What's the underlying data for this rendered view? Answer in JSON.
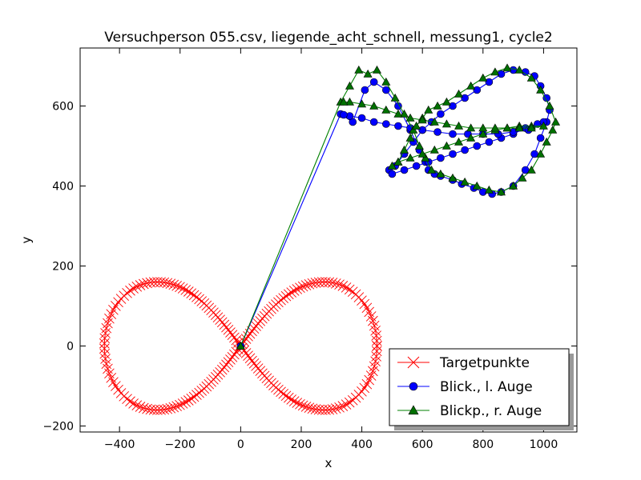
{
  "chart_data": {
    "type": "line",
    "title": "Versuchperson 055.csv, liegende_acht_schnell, messung1, cycle2",
    "xlabel": "x",
    "ylabel": "y",
    "xlim": [
      -530,
      1110
    ],
    "ylim": [
      -215,
      745
    ],
    "xticks": [
      -400,
      -200,
      0,
      200,
      400,
      600,
      800,
      1000
    ],
    "yticks": [
      -200,
      0,
      200,
      400,
      600
    ],
    "xtick_labels": [
      "−400",
      "−200",
      "0",
      "200",
      "400",
      "600",
      "800",
      "1000"
    ],
    "ytick_labels": [
      "−200",
      "0",
      "200",
      "400",
      "600"
    ],
    "grid": false,
    "legend_position": "lower right",
    "series": [
      {
        "name": "Targetpunkte",
        "color": "#ff0000",
        "marker": "x",
        "shape": "lemniscate",
        "x_extent": [
          -450,
          450
        ],
        "y_extent": [
          -160,
          160
        ],
        "point_count": 220
      },
      {
        "name": "Blick., l. Auge",
        "color": "#0000ff",
        "marker_fill": "#0000ff",
        "marker": "circle",
        "points": [
          [
            0,
            0
          ],
          [
            330,
            580
          ],
          [
            370,
            560
          ],
          [
            410,
            640
          ],
          [
            440,
            660
          ],
          [
            480,
            640
          ],
          [
            520,
            600
          ],
          [
            560,
            540
          ],
          [
            590,
            490
          ],
          [
            610,
            460
          ],
          [
            620,
            440
          ],
          [
            640,
            430
          ],
          [
            660,
            425
          ],
          [
            700,
            415
          ],
          [
            730,
            405
          ],
          [
            770,
            395
          ],
          [
            800,
            385
          ],
          [
            830,
            380
          ],
          [
            860,
            385
          ],
          [
            900,
            400
          ],
          [
            940,
            440
          ],
          [
            970,
            480
          ],
          [
            990,
            520
          ],
          [
            1010,
            560
          ],
          [
            1020,
            590
          ],
          [
            1010,
            620
          ],
          [
            990,
            650
          ],
          [
            970,
            675
          ],
          [
            940,
            685
          ],
          [
            900,
            690
          ],
          [
            860,
            680
          ],
          [
            820,
            660
          ],
          [
            780,
            640
          ],
          [
            740,
            620
          ],
          [
            700,
            600
          ],
          [
            660,
            580
          ],
          [
            630,
            560
          ],
          [
            600,
            540
          ],
          [
            570,
            510
          ],
          [
            540,
            480
          ],
          [
            510,
            450
          ],
          [
            490,
            440
          ],
          [
            500,
            430
          ],
          [
            540,
            440
          ],
          [
            580,
            450
          ],
          [
            620,
            460
          ],
          [
            660,
            470
          ],
          [
            700,
            480
          ],
          [
            740,
            490
          ],
          [
            780,
            500
          ],
          [
            820,
            510
          ],
          [
            860,
            520
          ],
          [
            900,
            530
          ],
          [
            940,
            545
          ],
          [
            980,
            555
          ],
          [
            1000,
            560
          ],
          [
            950,
            540
          ],
          [
            900,
            535
          ],
          [
            850,
            530
          ],
          [
            800,
            530
          ],
          [
            750,
            530
          ],
          [
            700,
            530
          ],
          [
            650,
            535
          ],
          [
            600,
            540
          ],
          [
            560,
            545
          ],
          [
            520,
            550
          ],
          [
            480,
            555
          ],
          [
            440,
            560
          ],
          [
            400,
            570
          ],
          [
            360,
            575
          ],
          [
            340,
            578
          ]
        ]
      },
      {
        "name": "Blickp., r. Auge",
        "color": "#008000",
        "marker_fill": "#007000",
        "marker": "triangle",
        "points": [
          [
            0,
            0
          ],
          [
            330,
            610
          ],
          [
            360,
            650
          ],
          [
            390,
            690
          ],
          [
            420,
            680
          ],
          [
            450,
            690
          ],
          [
            480,
            660
          ],
          [
            510,
            620
          ],
          [
            540,
            580
          ],
          [
            570,
            540
          ],
          [
            590,
            500
          ],
          [
            610,
            470
          ],
          [
            630,
            440
          ],
          [
            660,
            430
          ],
          [
            700,
            420
          ],
          [
            740,
            410
          ],
          [
            780,
            400
          ],
          [
            820,
            390
          ],
          [
            860,
            385
          ],
          [
            900,
            400
          ],
          [
            930,
            420
          ],
          [
            960,
            440
          ],
          [
            990,
            480
          ],
          [
            1010,
            510
          ],
          [
            1030,
            540
          ],
          [
            1040,
            560
          ],
          [
            1020,
            600
          ],
          [
            990,
            640
          ],
          [
            960,
            670
          ],
          [
            920,
            690
          ],
          [
            880,
            695
          ],
          [
            840,
            685
          ],
          [
            800,
            670
          ],
          [
            760,
            650
          ],
          [
            720,
            630
          ],
          [
            680,
            610
          ],
          [
            650,
            600
          ],
          [
            620,
            590
          ],
          [
            600,
            570
          ],
          [
            580,
            550
          ],
          [
            560,
            520
          ],
          [
            540,
            490
          ],
          [
            520,
            460
          ],
          [
            500,
            450
          ],
          [
            520,
            460
          ],
          [
            560,
            470
          ],
          [
            600,
            480
          ],
          [
            640,
            490
          ],
          [
            680,
            500
          ],
          [
            720,
            510
          ],
          [
            760,
            520
          ],
          [
            800,
            530
          ],
          [
            840,
            540
          ],
          [
            880,
            545
          ],
          [
            920,
            550
          ],
          [
            960,
            550
          ],
          [
            1000,
            550
          ],
          [
            960,
            545
          ],
          [
            920,
            545
          ],
          [
            880,
            545
          ],
          [
            840,
            545
          ],
          [
            800,
            545
          ],
          [
            760,
            545
          ],
          [
            720,
            550
          ],
          [
            680,
            555
          ],
          [
            640,
            560
          ],
          [
            600,
            565
          ],
          [
            560,
            570
          ],
          [
            520,
            580
          ],
          [
            480,
            590
          ],
          [
            440,
            600
          ],
          [
            400,
            605
          ],
          [
            360,
            610
          ],
          [
            340,
            610
          ]
        ]
      }
    ]
  }
}
